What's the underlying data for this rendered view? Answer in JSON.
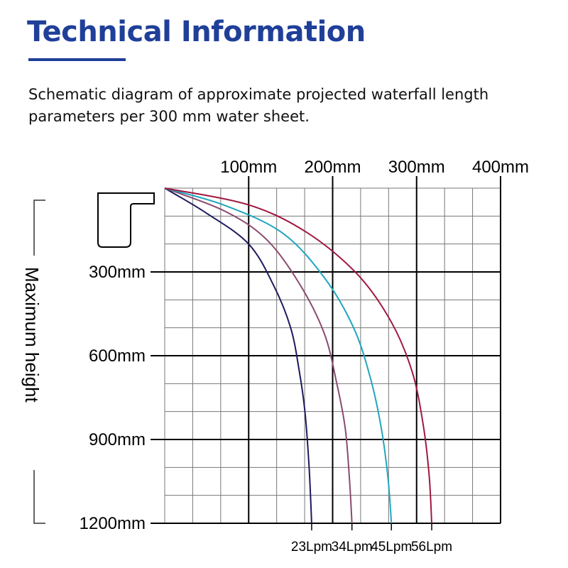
{
  "header": {
    "title": "Technical Information",
    "description": "Schematic diagram of approximate projected waterfall length parameters per 300 mm water sheet.",
    "accent_color": "#1f3f99"
  },
  "chart_data": {
    "type": "line",
    "title": "",
    "xlabel": "",
    "ylabel": "Maximum height",
    "xlim": [
      0,
      400
    ],
    "ylim": [
      0,
      1200
    ],
    "x_tick_values": [
      100,
      200,
      300,
      400
    ],
    "x_tick_labels": [
      "100mm",
      "200mm",
      "300mm",
      "400mm"
    ],
    "y_tick_values": [
      300,
      600,
      900,
      1200
    ],
    "y_tick_labels": [
      "300mm",
      "600mm",
      "900mm",
      "1200mm"
    ],
    "grid": true,
    "series": [
      {
        "name": "23Lpm",
        "color": "#1c1a5e",
        "x": [
          0,
          50,
          100,
          130,
          150,
          160,
          167,
          172,
          175
        ],
        "y": [
          0,
          90,
          200,
          350,
          500,
          650,
          800,
          1000,
          1200
        ]
      },
      {
        "name": "34Lpm",
        "color": "#8a4a6e",
        "x": [
          0,
          70,
          120,
          160,
          190,
          205,
          215,
          220,
          223
        ],
        "y": [
          0,
          80,
          180,
          340,
          520,
          700,
          860,
          1040,
          1200
        ]
      },
      {
        "name": "45Lpm",
        "color": "#1fa6bf",
        "x": [
          0,
          70,
          140,
          190,
          225,
          245,
          258,
          266,
          270
        ],
        "y": [
          0,
          60,
          160,
          320,
          500,
          680,
          860,
          1040,
          1200
        ]
      },
      {
        "name": "56Lpm",
        "color": "#a0183e",
        "x": [
          0,
          100,
          170,
          230,
          270,
          295,
          308,
          315,
          318
        ],
        "y": [
          0,
          60,
          160,
          310,
          480,
          660,
          850,
          1030,
          1200
        ]
      }
    ]
  }
}
